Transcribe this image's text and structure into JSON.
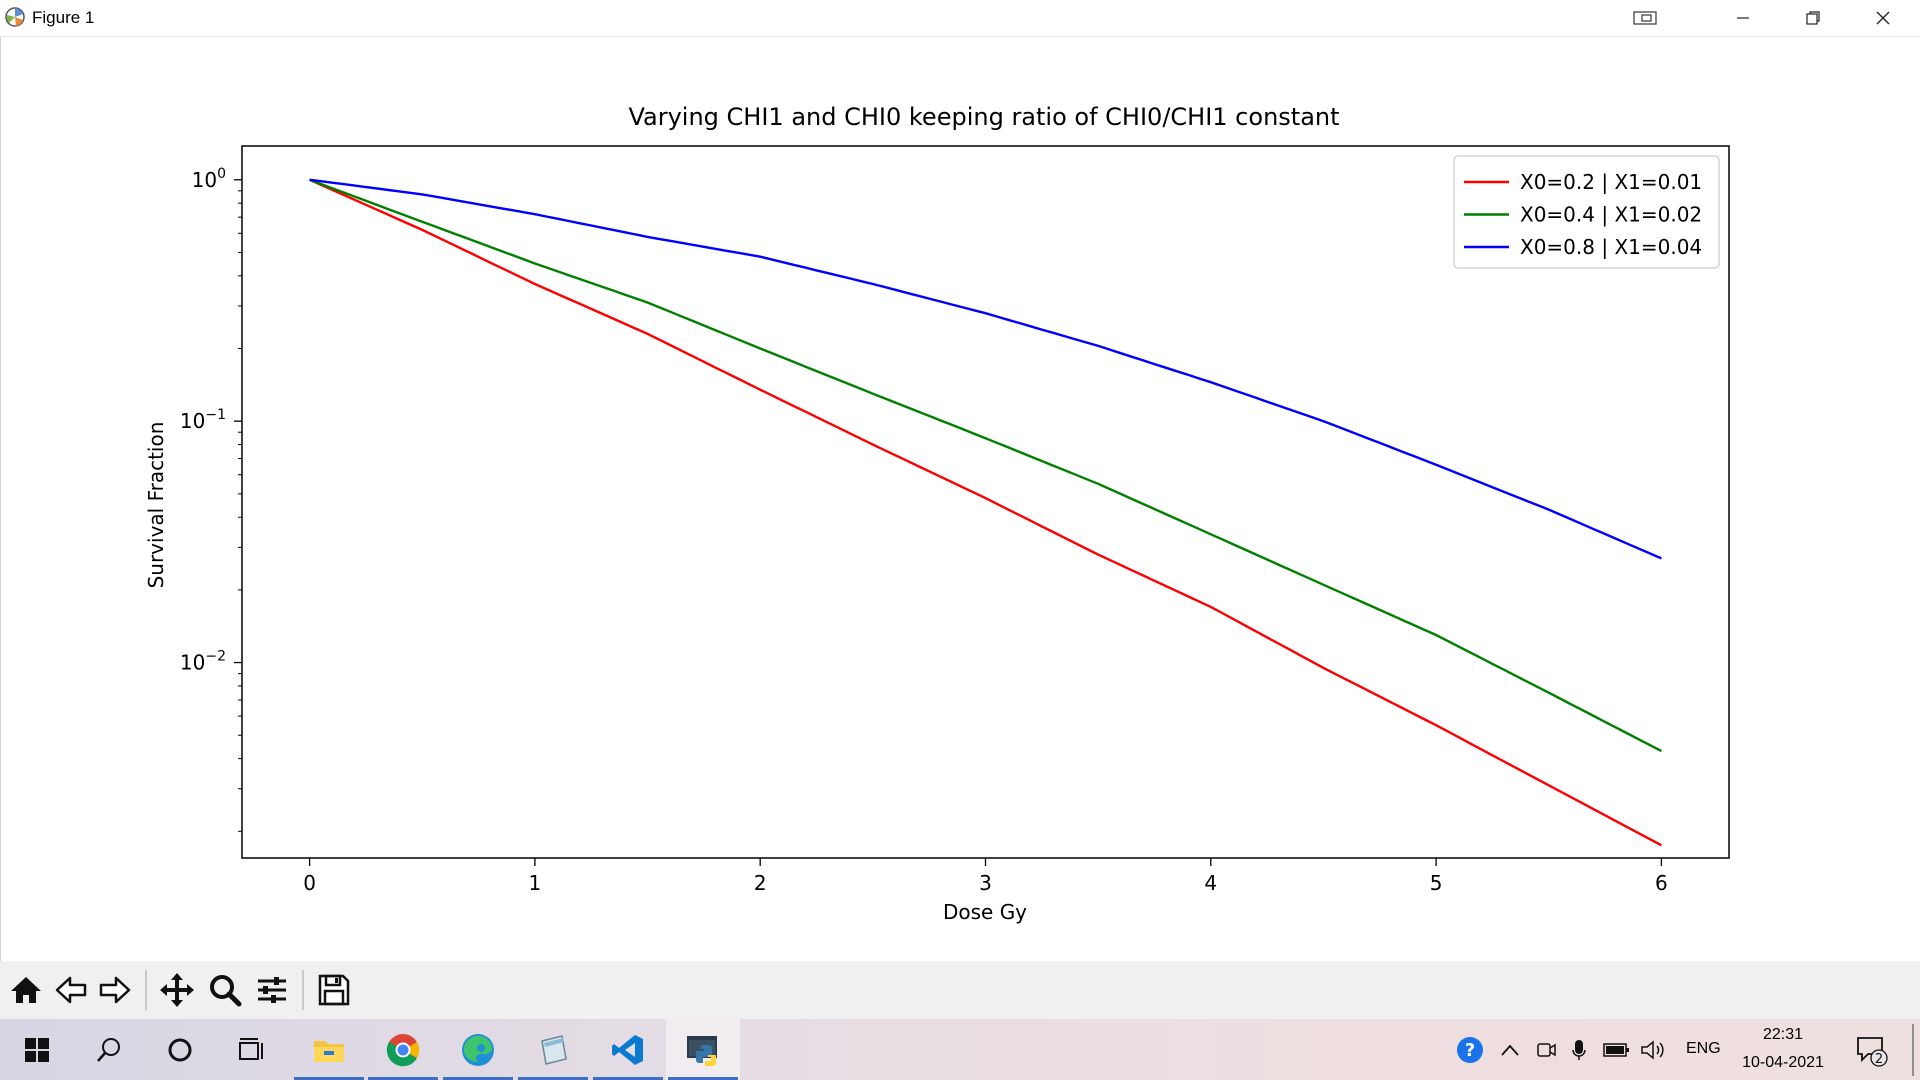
{
  "window": {
    "title": "Figure 1",
    "controls": [
      "task-view",
      "minimize",
      "restore",
      "close"
    ]
  },
  "chart_data": {
    "type": "line",
    "title": "Varying CHI1 and CHI0 keeping ratio of CHI0/CHI1 constant",
    "xlabel": "Dose Gy",
    "ylabel": "Survival Fraction",
    "yscale": "log",
    "xlim": [
      -0.3,
      6.3
    ],
    "ylim": [
      0.00155,
      1.38
    ],
    "x_ticks": [
      0,
      1,
      2,
      3,
      4,
      5,
      6
    ],
    "x_tick_labels": [
      "0",
      "1",
      "2",
      "3",
      "4",
      "5",
      "6"
    ],
    "y_ticks": [
      1,
      0.1,
      0.01
    ],
    "y_tick_labels": [
      {
        "base": "10",
        "exp": "0"
      },
      {
        "base": "10",
        "exp": "−1"
      },
      {
        "base": "10",
        "exp": "−2"
      }
    ],
    "legend_position": "top-right",
    "grid": false,
    "series": [
      {
        "name": "X0=0.2 | X1=0.01",
        "color": "#ff0000",
        "x": [
          0,
          0.5,
          1,
          1.5,
          2,
          2.5,
          3,
          3.5,
          4,
          4.5,
          5,
          5.5,
          6
        ],
        "y": [
          1.0,
          0.62,
          0.37,
          0.23,
          0.135,
          0.08,
          0.048,
          0.028,
          0.017,
          0.0095,
          0.0055,
          0.0031,
          0.00175
        ]
      },
      {
        "name": "X0=0.4 | X1=0.02",
        "color": "#008000",
        "x": [
          0,
          0.5,
          1,
          1.5,
          2,
          2.5,
          3,
          3.5,
          4,
          4.5,
          5,
          5.5,
          6
        ],
        "y": [
          1.0,
          0.67,
          0.45,
          0.31,
          0.2,
          0.13,
          0.085,
          0.055,
          0.034,
          0.021,
          0.013,
          0.0075,
          0.0043
        ]
      },
      {
        "name": "X0=0.8 | X1=0.04",
        "color": "#0000ff",
        "x": [
          0,
          0.5,
          1,
          1.5,
          2,
          2.5,
          3,
          3.5,
          4,
          4.5,
          5,
          5.5,
          6
        ],
        "y": [
          1.0,
          0.87,
          0.72,
          0.58,
          0.48,
          0.37,
          0.28,
          0.205,
          0.145,
          0.1,
          0.066,
          0.043,
          0.027
        ]
      }
    ]
  },
  "toolbar": {
    "buttons": [
      "home-icon",
      "back-arrow-icon",
      "forward-arrow-icon",
      "pan-icon",
      "zoom-icon",
      "configure-subplots-icon",
      "save-icon"
    ]
  },
  "taskbar": {
    "apps": [
      "start-icon",
      "search-icon",
      "cortana-icon",
      "task-view-icon",
      "file-explorer-icon",
      "chrome-icon",
      "edge-icon",
      "notepad-icon",
      "vscode-icon",
      "python-icon"
    ],
    "tray": {
      "language": "ENG",
      "time": "22:31",
      "date": "10-04-2021",
      "notification_count": "2"
    }
  },
  "colors": {
    "red": "#ff0000",
    "green": "#008000",
    "blue": "#0000ff",
    "axes": "#000000"
  }
}
